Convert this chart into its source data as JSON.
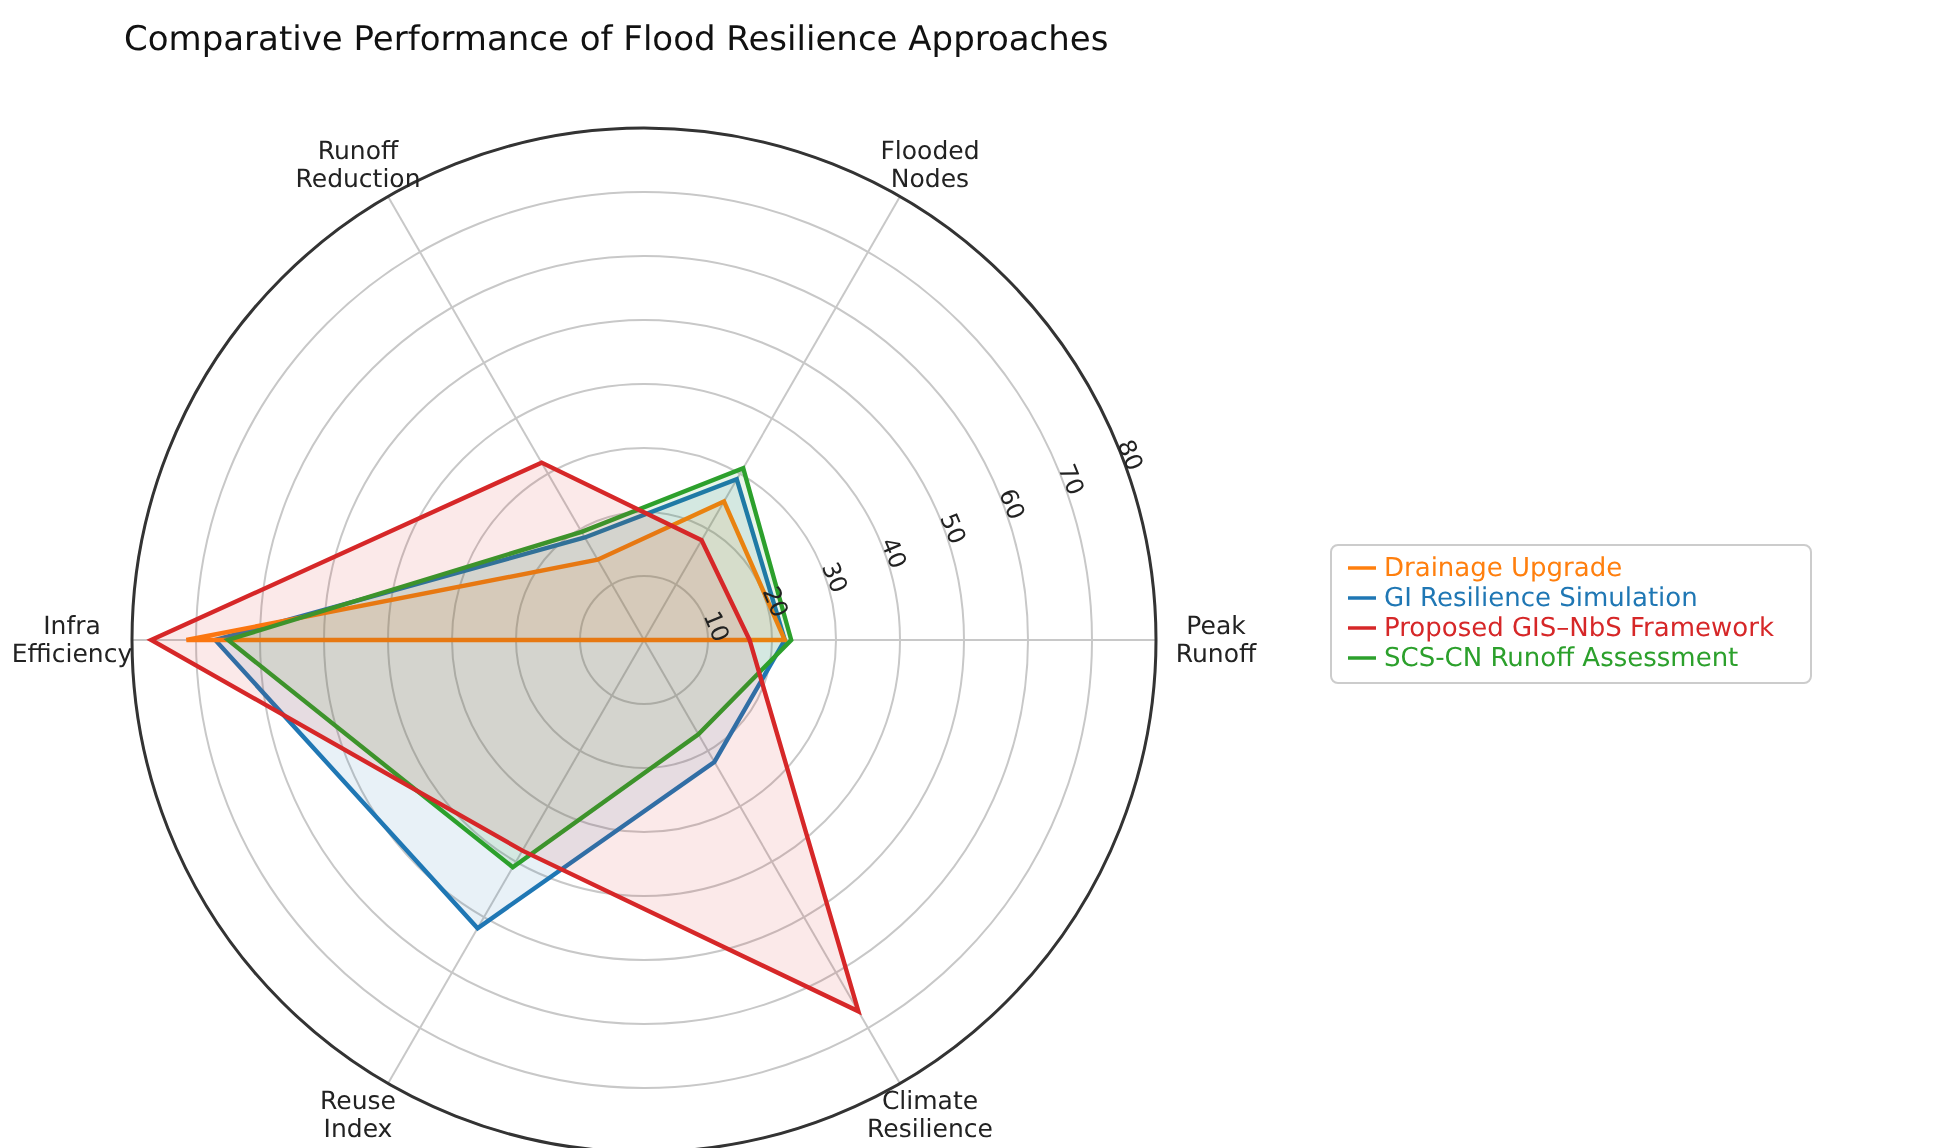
{
  "chart_data": {
    "type": "radar",
    "title": "Comparative Performance of Flood Resilience Approaches",
    "categories": [
      "Flooded Nodes",
      "Peak Runoff",
      "Climate Resilience",
      "Reuse Index",
      "Infra Efficiency",
      "Runoff Reduction"
    ],
    "series": [
      {
        "name": "GI Resilience Simulation",
        "color": "#1f77b4",
        "values": [
          29,
          22,
          22,
          52,
          67,
          18.5
        ]
      },
      {
        "name": "Drainage Upgrade",
        "color": "#ff7f0e",
        "values": [
          25,
          22,
          0,
          0,
          71.5,
          14.5
        ]
      },
      {
        "name": "SCS-CN Runoff Assessment",
        "color": "#2ca02c",
        "values": [
          31,
          23,
          17,
          41,
          65,
          19.5
        ]
      },
      {
        "name": "Proposed GIS–NbS Framework",
        "color": "#d62728",
        "values": [
          18,
          16.5,
          67,
          38,
          77,
          32
        ]
      }
    ],
    "ylim": [
      0,
      80
    ],
    "yticks": [
      10,
      20,
      30,
      40,
      50,
      60,
      70,
      80
    ],
    "grid": true,
    "legend": "right"
  }
}
